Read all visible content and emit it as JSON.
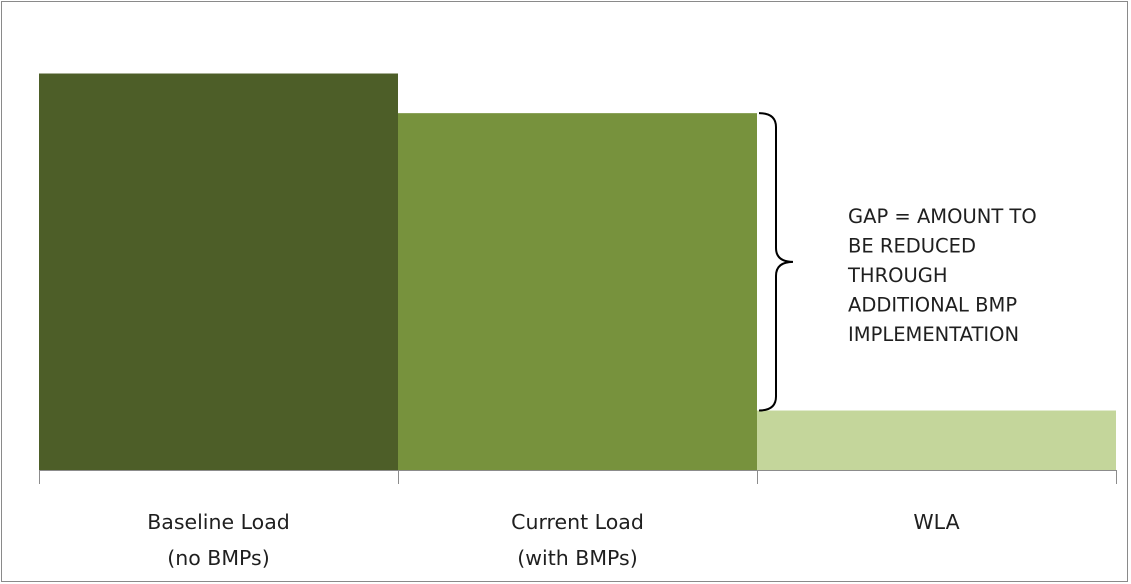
{
  "chart_data": {
    "type": "bar",
    "categories": [
      [
        "Baseline Load",
        "(no BMPs)"
      ],
      [
        "Current Load",
        "(with BMPs)"
      ],
      [
        "WLA"
      ]
    ],
    "values": [
      100,
      90,
      15
    ],
    "ylim": [
      0,
      114
    ],
    "grid": false,
    "colors": [
      "#4d5e28",
      "#77923d",
      "#c4d69b"
    ],
    "annotation": {
      "brace_from_category": 1,
      "brace_to_category": 2,
      "lines": [
        "GAP = AMOUNT TO",
        "BE REDUCED",
        "THROUGH",
        "ADDITIONAL BMP",
        "IMPLEMENTATION"
      ]
    }
  }
}
